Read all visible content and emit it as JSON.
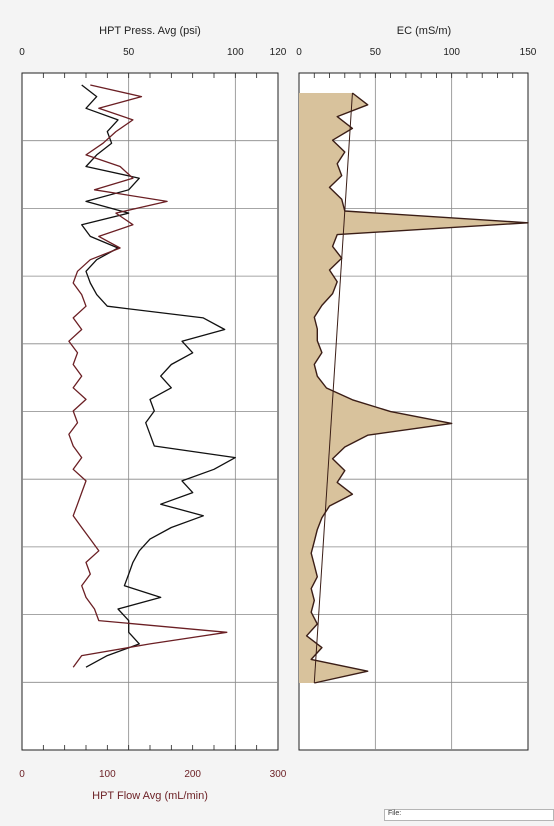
{
  "chart_data": [
    {
      "type": "line",
      "title": "HPT Press. Avg (psi)",
      "xlabel_bottom": "HPT Flow Avg (mL/min)",
      "top_axis": {
        "label": "HPT Press. Avg (psi)",
        "range": [
          0,
          120
        ],
        "ticks": [
          "0",
          "50",
          "100",
          "120"
        ],
        "tick_values": [
          0,
          50,
          100,
          120
        ]
      },
      "bottom_axis": {
        "label": "HPT Flow Avg (mL/min)",
        "range": [
          0,
          300
        ],
        "ticks": [
          "0",
          "100",
          "200",
          "300"
        ],
        "tick_values": [
          0,
          100,
          200,
          300
        ]
      },
      "depth_range": [
        0,
        1
      ],
      "grid": true,
      "series": [
        {
          "name": "HPT Press. Avg (psi)",
          "axis": "top",
          "color": "#111111",
          "depth": [
            0.0,
            0.02,
            0.04,
            0.06,
            0.08,
            0.1,
            0.12,
            0.14,
            0.16,
            0.18,
            0.2,
            0.22,
            0.24,
            0.26,
            0.28,
            0.3,
            0.32,
            0.34,
            0.36,
            0.38,
            0.4,
            0.42,
            0.44,
            0.46,
            0.48,
            0.5,
            0.52,
            0.54,
            0.56,
            0.58,
            0.6,
            0.62,
            0.64,
            0.66,
            0.68,
            0.7,
            0.72,
            0.74,
            0.76,
            0.78,
            0.8,
            0.82,
            0.84,
            0.86,
            0.88,
            0.9,
            0.92,
            0.94,
            0.96,
            0.98,
            1.0
          ],
          "values": [
            28,
            35,
            30,
            45,
            40,
            42,
            35,
            30,
            55,
            50,
            30,
            50,
            28,
            32,
            45,
            35,
            30,
            32,
            35,
            40,
            85,
            95,
            75,
            80,
            70,
            65,
            70,
            60,
            62,
            58,
            60,
            62,
            100,
            90,
            75,
            80,
            65,
            85,
            70,
            60,
            55,
            52,
            50,
            48,
            65,
            45,
            50,
            50,
            55,
            40,
            30
          ]
        },
        {
          "name": "HPT Flow Avg (mL/min)",
          "axis": "bottom",
          "color": "#6b1f24",
          "depth": [
            0.0,
            0.02,
            0.04,
            0.06,
            0.08,
            0.1,
            0.12,
            0.14,
            0.16,
            0.18,
            0.2,
            0.22,
            0.24,
            0.26,
            0.28,
            0.3,
            0.32,
            0.34,
            0.36,
            0.38,
            0.4,
            0.42,
            0.44,
            0.46,
            0.48,
            0.5,
            0.52,
            0.54,
            0.56,
            0.58,
            0.6,
            0.62,
            0.64,
            0.66,
            0.68,
            0.7,
            0.72,
            0.74,
            0.76,
            0.78,
            0.8,
            0.82,
            0.84,
            0.86,
            0.88,
            0.9,
            0.92,
            0.94,
            0.96,
            0.98,
            1.0
          ],
          "values": [
            80,
            140,
            90,
            130,
            110,
            95,
            75,
            115,
            130,
            85,
            170,
            110,
            130,
            90,
            115,
            80,
            65,
            60,
            70,
            75,
            60,
            70,
            55,
            65,
            60,
            70,
            60,
            75,
            60,
            65,
            55,
            60,
            70,
            60,
            75,
            70,
            65,
            60,
            70,
            80,
            90,
            75,
            80,
            70,
            75,
            85,
            90,
            240,
            150,
            70,
            60
          ]
        }
      ]
    },
    {
      "type": "area",
      "title": "EC (mS/m)",
      "top_axis": {
        "label": "EC (mS/m)",
        "range": [
          0,
          150
        ],
        "ticks": [
          "0",
          "50",
          "100",
          "150"
        ],
        "tick_values": [
          0,
          50,
          100,
          150
        ]
      },
      "depth_range": [
        0,
        1
      ],
      "grid": true,
      "fill_color": "#d8c29c",
      "line_color": "#3a1d16",
      "series": [
        {
          "name": "EC (mS/m)",
          "depth": [
            0.0,
            0.02,
            0.04,
            0.06,
            0.08,
            0.1,
            0.12,
            0.14,
            0.16,
            0.18,
            0.2,
            0.22,
            0.24,
            0.26,
            0.28,
            0.3,
            0.32,
            0.34,
            0.36,
            0.38,
            0.4,
            0.42,
            0.44,
            0.46,
            0.48,
            0.5,
            0.52,
            0.54,
            0.56,
            0.58,
            0.6,
            0.62,
            0.64,
            0.66,
            0.68,
            0.7,
            0.72,
            0.74,
            0.76,
            0.78,
            0.8,
            0.82,
            0.84,
            0.86,
            0.88,
            0.9,
            0.92,
            0.94,
            0.96,
            0.98,
            1.0
          ],
          "values": [
            35,
            45,
            25,
            35,
            22,
            30,
            25,
            28,
            20,
            28,
            30,
            150,
            25,
            22,
            28,
            20,
            25,
            22,
            15,
            10,
            12,
            12,
            15,
            10,
            12,
            18,
            35,
            60,
            100,
            45,
            30,
            22,
            30,
            25,
            35,
            20,
            15,
            12,
            10,
            8,
            10,
            12,
            8,
            10,
            8,
            12,
            5,
            15,
            8,
            45,
            10
          ]
        },
        {
          "name": "trend",
          "depth": [
            0.0,
            1.0
          ],
          "values": [
            35,
            10
          ]
        }
      ]
    }
  ],
  "file_box": {
    "label": "File:"
  }
}
